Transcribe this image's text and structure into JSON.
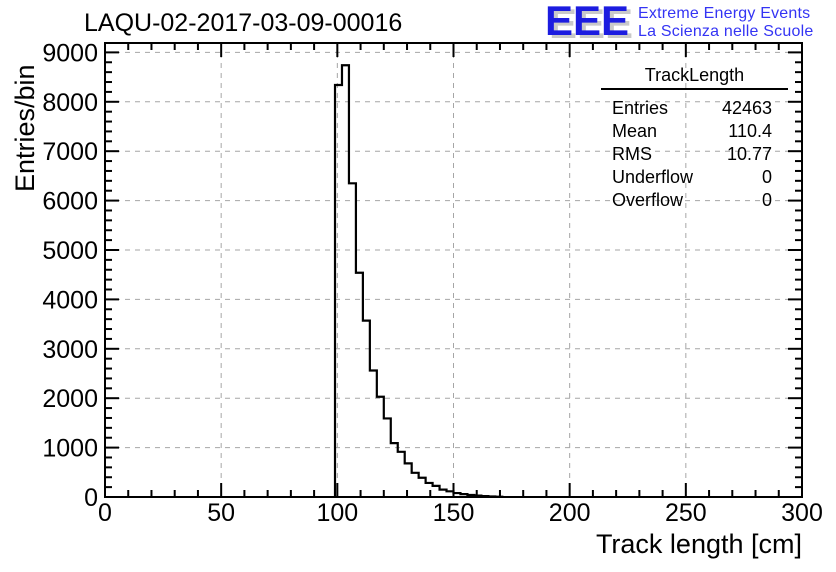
{
  "title": "LAQU-02-2017-03-09-00016",
  "logo": {
    "acronym": "EEE",
    "line1": "Extreme Energy Events",
    "line2": "La Scienza nelle Scuole",
    "letter_color": "#1c1ce0",
    "text_color": "#3434f4",
    "shadow_color": "#c9c9c9"
  },
  "stats_box": {
    "title": "TrackLength",
    "rows": [
      {
        "label": "Entries",
        "value": "42463"
      },
      {
        "label": "Mean",
        "value": "110.4"
      },
      {
        "label": "RMS",
        "value": "10.77"
      },
      {
        "label": "Underflow",
        "value": "0"
      },
      {
        "label": "Overflow",
        "value": "0"
      }
    ]
  },
  "chart_data": {
    "type": "bar",
    "title": "LAQU-02-2017-03-09-00016",
    "xlabel": "Track length [cm]",
    "ylabel": "Entries/bin",
    "xlim": [
      0,
      300
    ],
    "ylim": [
      0,
      9190
    ],
    "x_major_step": 50,
    "x_minor_step": 10,
    "y_major_step": 1000,
    "y_minor_step": 200,
    "grid": true,
    "grid_color": "#a6a6a6",
    "line_color": "#000000",
    "legend_position": "none",
    "histogram": {
      "bin_start": 99,
      "bin_width": 3,
      "counts": [
        8340,
        8740,
        6350,
        4540,
        3570,
        2560,
        2030,
        1590,
        1090,
        915,
        680,
        490,
        390,
        285,
        225,
        150,
        115,
        80,
        58,
        40,
        28,
        18,
        10,
        5
      ]
    },
    "stats": {
      "entries": 42463,
      "mean": 110.4,
      "rms": 10.77,
      "underflow": 0,
      "overflow": 0
    }
  }
}
